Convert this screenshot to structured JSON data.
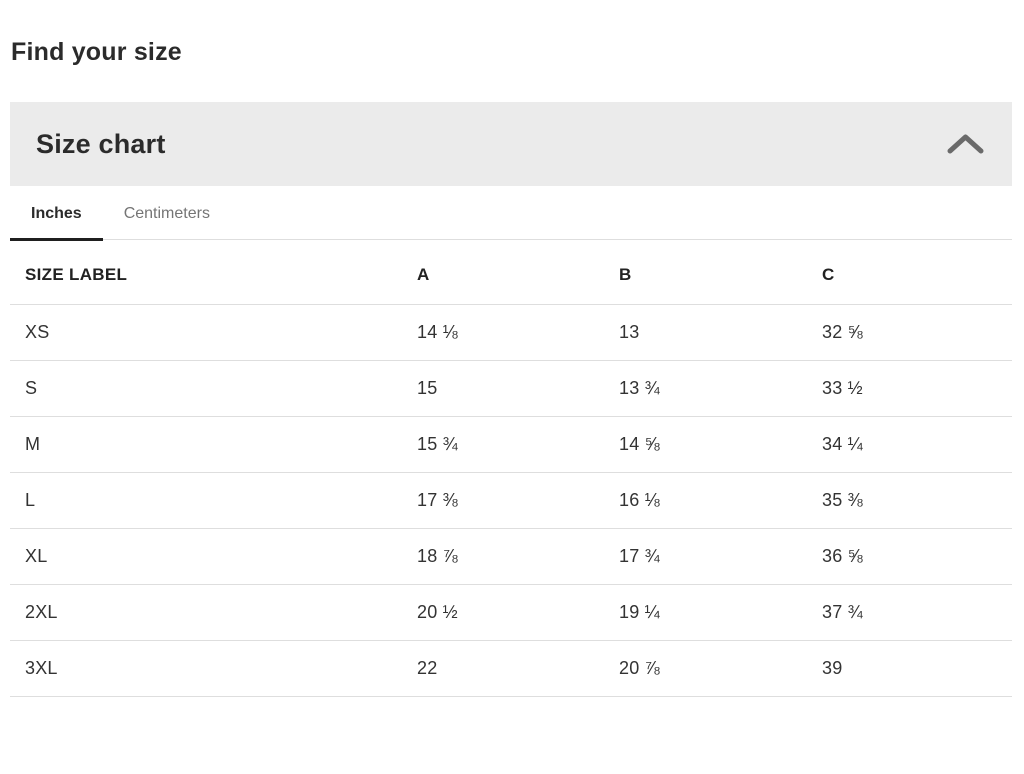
{
  "page": {
    "title": "Find your size"
  },
  "panel": {
    "title": "Size chart",
    "chevron_icon": "chevron-up",
    "expanded": true
  },
  "tabs": {
    "items": [
      {
        "label": "Inches",
        "active": true
      },
      {
        "label": "Centimeters",
        "active": false
      }
    ]
  },
  "table": {
    "columns": [
      "SIZE LABEL",
      "A",
      "B",
      "C"
    ],
    "rows": [
      [
        "XS",
        "14 ⅛",
        "13",
        "32 ⅝"
      ],
      [
        "S",
        "15",
        "13 ¾",
        "33 ½"
      ],
      [
        "M",
        "15 ¾",
        "14 ⅝",
        "34 ¼"
      ],
      [
        "L",
        "17 ⅜",
        "16 ⅛",
        "35 ⅜"
      ],
      [
        "XL",
        "18 ⅞",
        "17 ¾",
        "36 ⅝"
      ],
      [
        "2XL",
        "20 ½",
        "19 ¼",
        "37 ¾"
      ],
      [
        "3XL",
        "22",
        "20 ⅞",
        "39"
      ]
    ]
  },
  "colors": {
    "panel_bg": "#ebebeb",
    "text_dark": "#2b2b2b",
    "text_muted": "#757575",
    "row_border": "#dedede",
    "active_tab_underline": "#1f1f1f",
    "chevron": "#6a6a6a"
  }
}
